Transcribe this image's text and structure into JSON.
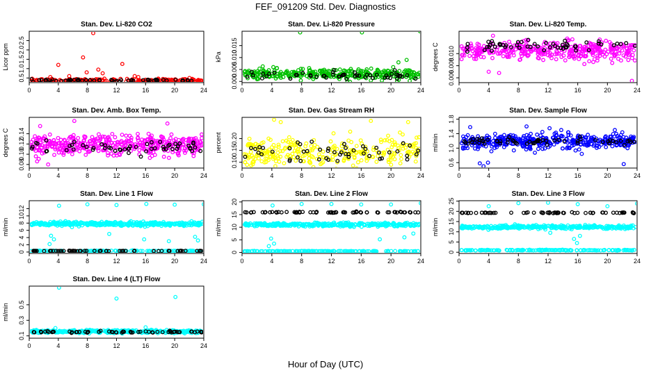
{
  "figure": {
    "title": "FEF_091209  Std. Dev. Diagnostics",
    "xlabel": "Hour of Day (UTC)"
  },
  "chart_data": [
    {
      "type": "scatter",
      "title": "Stan. Dev. Li-820 CO2",
      "ylabel": "Licor ppm",
      "xlim": [
        0,
        24
      ],
      "ylim": [
        0.25,
        3.0
      ],
      "xticks": [
        "0",
        "4",
        "8",
        "12",
        "16",
        "20",
        "24"
      ],
      "yticks": [
        "0.5",
        "1.0",
        "1.5",
        "2.0",
        "2.5"
      ],
      "ytick_values": [
        0.5,
        1.0,
        1.5,
        2.0,
        2.5
      ],
      "color": "#ff0000",
      "series": [
        {
          "color": "#ff0000",
          "band": [
            0.36,
            0.08
          ],
          "n": 220
        },
        {
          "color": "#000000",
          "band": [
            0.37,
            0.04
          ],
          "n": 55
        }
      ],
      "outliers": [
        [
          8.8,
          2.9
        ],
        [
          7.4,
          1.6
        ],
        [
          4.0,
          1.2
        ],
        [
          12.8,
          1.25
        ],
        [
          9.5,
          0.95
        ],
        [
          10.1,
          0.75
        ],
        [
          7.9,
          0.8
        ],
        [
          14.5,
          0.6
        ],
        [
          15.0,
          0.55
        ],
        [
          5.5,
          0.6
        ],
        [
          2.9,
          0.55
        ]
      ]
    },
    {
      "type": "scatter",
      "title": "Stan. Dev. Li-820 Pressure",
      "ylabel": "kPa",
      "xlim": [
        0,
        24
      ],
      "ylim": [
        -0.0005,
        0.021
      ],
      "xticks": [
        "0",
        "4",
        "8",
        "12",
        "16",
        "20",
        "24"
      ],
      "yticks": [
        "0.000",
        "0.005",
        "0.010",
        "0.015"
      ],
      "ytick_values": [
        0.0,
        0.005,
        0.01,
        0.015
      ],
      "color": "#00c000",
      "series": [
        {
          "color": "#00c000",
          "band": [
            0.003,
            0.0018
          ],
          "n": 320
        },
        {
          "color": "#000000",
          "band": [
            0.0025,
            0.0015
          ],
          "n": 50
        }
      ],
      "outliers": [
        [
          7.8,
          0.0205
        ],
        [
          16.1,
          0.0205
        ],
        [
          23.9,
          0.021
        ],
        [
          21.0,
          0.008
        ],
        [
          22.1,
          0.009
        ],
        [
          4.2,
          0.006
        ]
      ]
    },
    {
      "type": "scatter",
      "title": "Stan. Dev. Li-820 Temp.",
      "ylabel": "degrees C",
      "xlim": [
        0,
        24
      ],
      "ylim": [
        0.0052,
        0.0137
      ],
      "xticks": [
        "0",
        "4",
        "8",
        "12",
        "16",
        "20",
        "24"
      ],
      "yticks": [
        "0.006",
        "0.008",
        "0.010"
      ],
      "ytick_values": [
        0.006,
        0.008,
        0.01
      ],
      "color": "#ff00ff",
      "series": [
        {
          "color": "#ff00ff",
          "band": [
            0.0105,
            0.0013
          ],
          "n": 380
        },
        {
          "color": "#000000",
          "band": [
            0.0112,
            0.0008
          ],
          "n": 55
        }
      ],
      "outliers": [
        [
          23.3,
          0.0055
        ],
        [
          5.4,
          0.0068
        ],
        [
          4.0,
          0.007
        ]
      ]
    },
    {
      "type": "scatter",
      "title": "Stan. Dev. Amb. Box Temp.",
      "ylabel": "degrees C",
      "xlim": [
        0,
        24
      ],
      "ylim": [
        0.073,
        0.172
      ],
      "xticks": [
        "0",
        "4",
        "8",
        "12",
        "16",
        "20",
        "24"
      ],
      "yticks": [
        "0.08",
        "0.10",
        "0.12",
        "0.14"
      ],
      "ytick_values": [
        0.08,
        0.1,
        0.12,
        0.14
      ],
      "color": "#ff00ff",
      "series": [
        {
          "color": "#ff00ff",
          "band": [
            0.118,
            0.016
          ],
          "n": 420
        },
        {
          "color": "#000000",
          "band": [
            0.113,
            0.01
          ],
          "n": 55
        }
      ],
      "outliers": [
        [
          6.2,
          0.165
        ],
        [
          19.0,
          0.16
        ],
        [
          1.5,
          0.155
        ],
        [
          2.6,
          0.08
        ]
      ]
    },
    {
      "type": "scatter",
      "title": "Stan. Dev. Gas Stream RH",
      "ylabel": "percent",
      "xlim": [
        0,
        24
      ],
      "ylim": [
        0.075,
        0.29
      ],
      "xticks": [
        "0",
        "4",
        "8",
        "12",
        "16",
        "20",
        "24"
      ],
      "yticks": [
        "0.10",
        "0.15",
        "0.20"
      ],
      "ytick_values": [
        0.1,
        0.15,
        0.2
      ],
      "color": "#ffff00",
      "series": [
        {
          "color": "#ffff00",
          "band": [
            0.14,
            0.055
          ],
          "n": 300
        },
        {
          "color": "#000000",
          "band": [
            0.14,
            0.04
          ],
          "n": 50
        }
      ],
      "outliers": [
        [
          4.3,
          0.28
        ],
        [
          5.2,
          0.27
        ],
        [
          17.3,
          0.275
        ],
        [
          22.3,
          0.27
        ]
      ]
    },
    {
      "type": "scatter",
      "title": "Stan. Dev. Sample Flow",
      "ylabel": "ml/min",
      "xlim": [
        0,
        24
      ],
      "ylim": [
        0.45,
        1.85
      ],
      "xticks": [
        "0",
        "4",
        "8",
        "12",
        "16",
        "20",
        "24"
      ],
      "yticks": [
        "0.6",
        "1.0",
        "1.4",
        "1.8"
      ],
      "ytick_values": [
        0.6,
        1.0,
        1.4,
        1.8
      ],
      "color": "#0000ff",
      "series": [
        {
          "color": "#0000ff",
          "band": [
            1.18,
            0.17
          ],
          "n": 420
        },
        {
          "color": "#000000",
          "band": [
            1.2,
            0.07
          ],
          "n": 60
        }
      ],
      "outliers": [
        [
          3.3,
          0.5
        ],
        [
          3.9,
          0.6
        ],
        [
          2.8,
          0.58
        ],
        [
          22.2,
          0.56
        ],
        [
          9.1,
          1.6
        ],
        [
          1.5,
          1.58
        ],
        [
          12.2,
          1.55
        ],
        [
          21.0,
          1.5
        ]
      ]
    },
    {
      "type": "scatter",
      "title": "Stan. Dev. Line 1 Flow",
      "ylabel": "ml/min",
      "xlim": [
        0,
        24
      ],
      "ylim": [
        -0.4,
        14.2
      ],
      "xticks": [
        "0",
        "4",
        "8",
        "12",
        "16",
        "20",
        "24"
      ],
      "yticks": [
        "0",
        "2",
        "4",
        "6",
        "8",
        "10",
        "12"
      ],
      "ytick_values": [
        0,
        2,
        4,
        6,
        8,
        10,
        12
      ],
      "color": "#00ffff",
      "series": [
        {
          "color": "#00ffff",
          "band": [
            7.8,
            0.45
          ],
          "n": 380
        },
        {
          "color": "#00ffff",
          "band": [
            0.3,
            0.08
          ],
          "n": 120
        },
        {
          "color": "#000000",
          "band": [
            0.3,
            0.05
          ],
          "n": 60
        }
      ],
      "outliers": [
        [
          4.1,
          12.8
        ],
        [
          8.0,
          13.2
        ],
        [
          12.0,
          13.0
        ],
        [
          16.1,
          13.3
        ],
        [
          20.0,
          13.1
        ],
        [
          24.0,
          13.2
        ],
        [
          3.0,
          4.5
        ],
        [
          3.4,
          3.5
        ],
        [
          2.8,
          2.2
        ],
        [
          15.8,
          3.5
        ],
        [
          19.2,
          3.0
        ],
        [
          22.8,
          4.2
        ],
        [
          23.2,
          3.2
        ],
        [
          11.0,
          5.0
        ]
      ]
    },
    {
      "type": "scatter",
      "title": "Stan. Dev. Line 2 Flow",
      "ylabel": "ml/min",
      "xlim": [
        0,
        24
      ],
      "ylim": [
        -0.4,
        20.5
      ],
      "xticks": [
        "0",
        "4",
        "8",
        "12",
        "16",
        "20",
        "24"
      ],
      "yticks": [
        "0",
        "5",
        "10",
        "15",
        "20"
      ],
      "ytick_values": [
        0,
        5,
        10,
        15,
        20
      ],
      "color": "#00ffff",
      "series": [
        {
          "color": "#00ffff",
          "band": [
            11.0,
            0.6
          ],
          "n": 340
        },
        {
          "color": "#00ffff",
          "band": [
            0.5,
            0.1
          ],
          "n": 160
        },
        {
          "color": "#000000",
          "band": [
            15.9,
            0.15
          ],
          "n": 65
        }
      ],
      "outliers": [
        [
          4.1,
          18.6
        ],
        [
          8.0,
          19.2
        ],
        [
          12.0,
          19.2
        ],
        [
          16.0,
          19.0
        ],
        [
          20.0,
          19.0
        ],
        [
          24.0,
          19.5
        ],
        [
          3.9,
          5.5
        ],
        [
          4.3,
          3.5
        ],
        [
          3.6,
          2.5
        ],
        [
          18.5,
          5.2
        ],
        [
          21.8,
          6.0
        ],
        [
          23.0,
          7.5
        ]
      ]
    },
    {
      "type": "scatter",
      "title": "Stan. Dev. Line 3 Flow",
      "ylabel": "ml/min",
      "xlim": [
        0,
        24
      ],
      "ylim": [
        -0.6,
        25.2
      ],
      "xticks": [
        "0",
        "4",
        "8",
        "12",
        "16",
        "20",
        "24"
      ],
      "yticks": [
        "0",
        "5",
        "10",
        "15",
        "20",
        "25"
      ],
      "ytick_values": [
        0,
        5,
        10,
        15,
        20,
        25
      ],
      "color": "#00ffff",
      "series": [
        {
          "color": "#00ffff",
          "band": [
            12.3,
            0.7
          ],
          "n": 340
        },
        {
          "color": "#00ffff",
          "band": [
            1.0,
            0.2
          ],
          "n": 160
        },
        {
          "color": "#000000",
          "band": [
            19.3,
            0.15
          ],
          "n": 65
        }
      ],
      "outliers": [
        [
          4.0,
          22.5
        ],
        [
          8.0,
          24.0
        ],
        [
          12.0,
          24.2
        ],
        [
          16.0,
          23.5
        ],
        [
          20.0,
          22.5
        ],
        [
          24.0,
          23.8
        ],
        [
          15.5,
          6.5
        ],
        [
          15.9,
          4.5
        ],
        [
          16.3,
          8.0
        ],
        [
          12.3,
          9.5
        ]
      ]
    },
    {
      "type": "scatter",
      "title": "Stan. Dev. Line 4 (LT) Flow",
      "ylabel": "ml/min",
      "xlim": [
        0,
        24
      ],
      "ylim": [
        0.07,
        0.74
      ],
      "xticks": [
        "0",
        "4",
        "8",
        "12",
        "16",
        "20",
        "24"
      ],
      "yticks": [
        "0.1",
        "0.3",
        "0.5"
      ],
      "ytick_values": [
        0.1,
        0.3,
        0.5
      ],
      "color": "#00ffff",
      "series": [
        {
          "color": "#00ffff",
          "band": [
            0.155,
            0.015
          ],
          "n": 380
        },
        {
          "color": "#000000",
          "band": [
            0.15,
            0.01
          ],
          "n": 60
        }
      ],
      "outliers": [
        [
          4.1,
          0.72
        ],
        [
          12.0,
          0.58
        ],
        [
          20.1,
          0.6
        ],
        [
          3.6,
          0.2
        ],
        [
          16.0,
          0.21
        ]
      ]
    }
  ]
}
